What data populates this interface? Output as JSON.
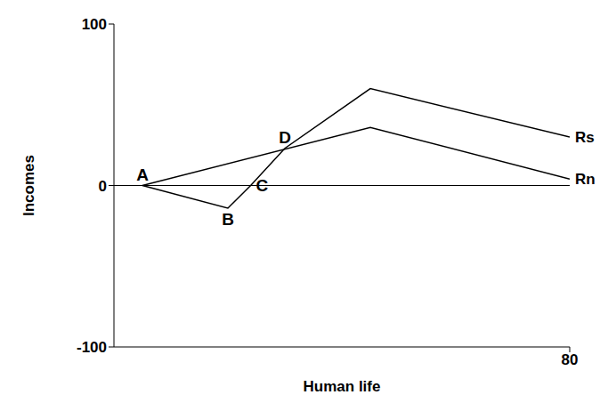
{
  "chart_data": {
    "type": "line",
    "x_label": "Human life",
    "y_label": "Incomes",
    "xlim": [
      0,
      80
    ],
    "xticks": [
      80
    ],
    "ylim": [
      -100,
      100
    ],
    "yticks": [
      -100,
      0,
      100
    ],
    "grid": false,
    "series": [
      {
        "name": "Rs",
        "color": "#000000",
        "x": [
          5,
          20,
          24,
          30,
          45,
          80
        ],
        "values": [
          0,
          -14,
          0,
          23,
          60,
          30
        ]
      },
      {
        "name": "Rn",
        "color": "#000000",
        "x": [
          5,
          45,
          80
        ],
        "values": [
          0,
          36,
          4
        ]
      }
    ],
    "annotations": [
      {
        "text": "A",
        "x": 5,
        "y": 0
      },
      {
        "text": "B",
        "x": 20,
        "y": -14
      },
      {
        "text": "C",
        "x": 24,
        "y": 0
      },
      {
        "text": "D",
        "x": 30,
        "y": 23
      }
    ]
  }
}
